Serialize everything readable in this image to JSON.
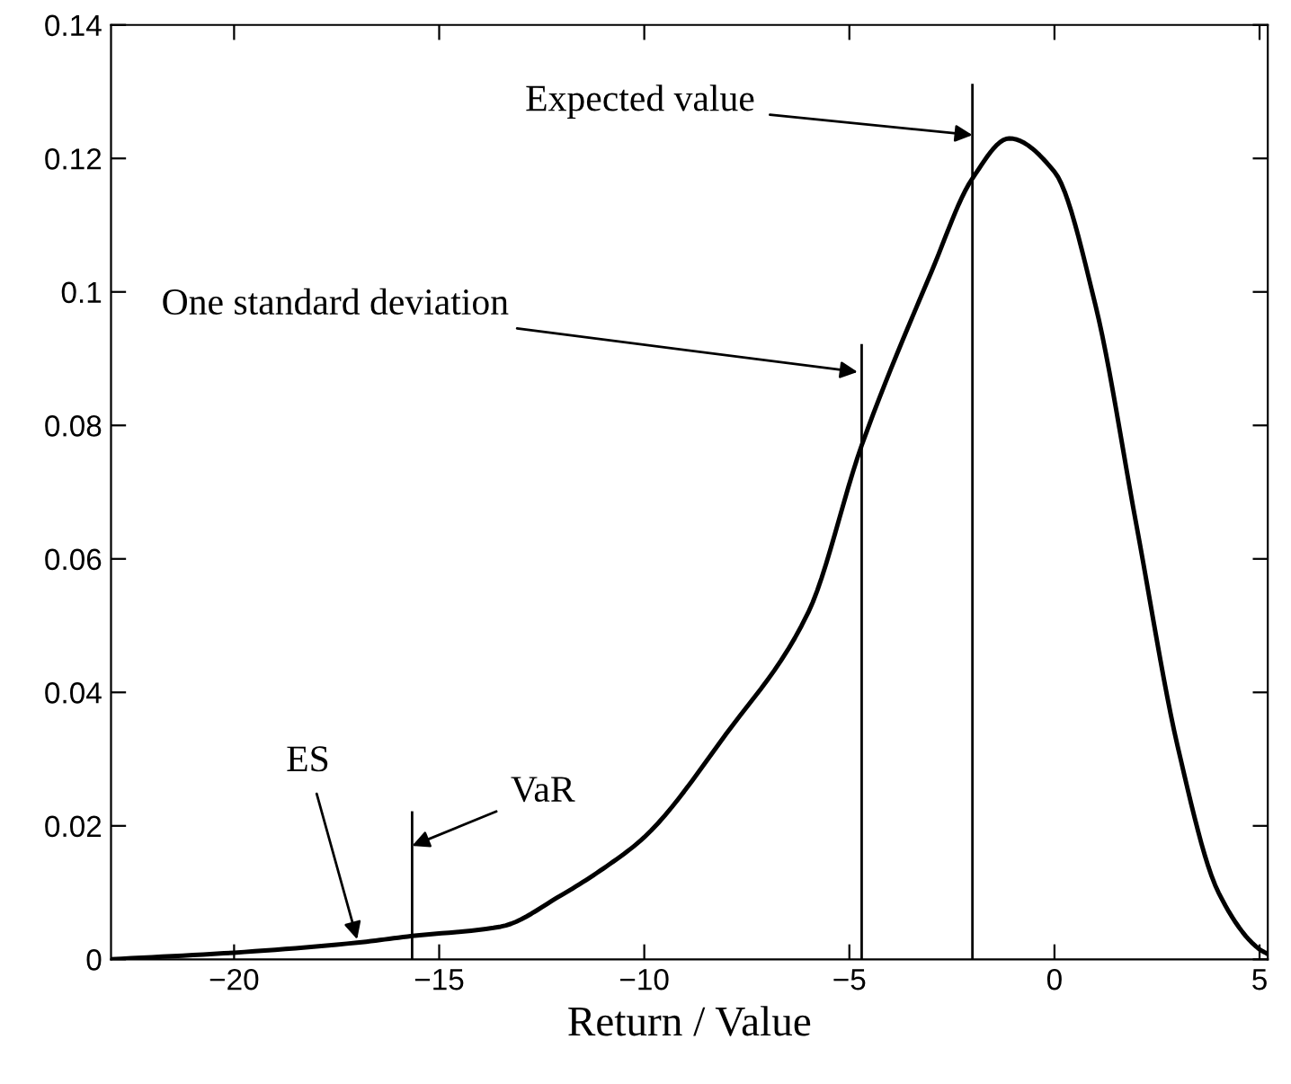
{
  "chart_data": {
    "type": "line",
    "xlabel": "Return / Value",
    "xlim": [
      -23,
      5.2
    ],
    "xticks": [
      -20,
      -15,
      -10,
      -5,
      0,
      5
    ],
    "ylim": [
      0,
      0.14
    ],
    "yticks": [
      0,
      0.02,
      0.04,
      0.06,
      0.08,
      0.1,
      0.12,
      0.14
    ],
    "grid": false,
    "legend": false,
    "marker": "none",
    "line_style": "solid",
    "series": [
      {
        "color": "#000000",
        "x": [
          -23,
          -20,
          -17,
          -15.66,
          -13.5,
          -12,
          -11,
          -10,
          -8,
          -6,
          -4.7,
          -3,
          -2,
          -1.1,
          0,
          1,
          2,
          3,
          4,
          5,
          5.2
        ],
        "values": [
          0,
          0.001,
          0.0025,
          0.0035,
          0.0049,
          0.0097,
          0.0136,
          0.0183,
          0.0338,
          0.052,
          0.077,
          0.103,
          0.117,
          0.123,
          0.118,
          0.098,
          0.065,
          0.032,
          0.01,
          0.0015,
          0.0008
        ]
      },
      {
        "color": "#000000",
        "x": [
          -15.66,
          -15.66
        ],
        "values": [
          0,
          0.022
        ]
      },
      {
        "color": "#000000",
        "x": [
          -4.7,
          -4.7
        ],
        "values": [
          0,
          0.092
        ]
      },
      {
        "color": "#000000",
        "x": [
          -2,
          -2
        ],
        "values": [
          0,
          0.131
        ]
      }
    ],
    "annotations": [
      {
        "text": "Expected value",
        "x": -2,
        "y": 0.1235
      },
      {
        "text": "One standard deviation",
        "x": -4.8,
        "y": 0.088
      },
      {
        "text": "ES",
        "x": -17,
        "y": 0.003
      },
      {
        "text": "VaR",
        "x": -15.66,
        "y": 0.017
      }
    ]
  }
}
